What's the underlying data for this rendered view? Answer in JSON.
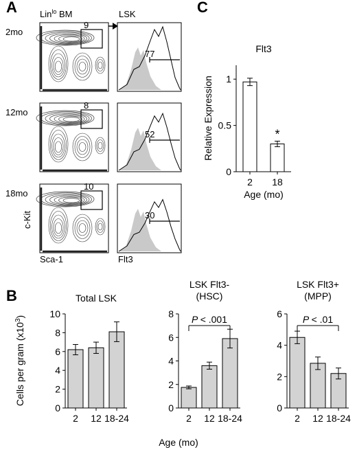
{
  "panels": {
    "a": "A",
    "b": "B",
    "c": "C"
  },
  "panel_a": {
    "rows": [
      {
        "age_label": "2mo",
        "gate_pct": "9",
        "flt3_pct": "77"
      },
      {
        "age_label": "12mo",
        "gate_pct": "8",
        "flt3_pct": "52"
      },
      {
        "age_label": "18mo",
        "gate_pct": "10",
        "flt3_pct": "30"
      }
    ],
    "left_header": "Lin",
    "left_header_sup": "lo",
    "left_header_rest": " BM",
    "right_header": "LSK",
    "y_axis_label": "c-Kit",
    "x_axis_left": "Sca-1",
    "x_axis_right": "Flt3"
  },
  "chart_data": [
    {
      "type": "bar",
      "id": "C",
      "title": "Flt3",
      "categories": [
        "2",
        "18"
      ],
      "values": [
        0.97,
        0.3
      ],
      "errors": [
        0.04,
        0.03
      ],
      "yticks": [
        "0",
        "0.5",
        "1"
      ],
      "ylim": [
        0,
        1.15
      ],
      "xlabel": "Age (mo)",
      "ylabel": "Relative Expression",
      "significance": [
        "",
        "*"
      ],
      "bar_color": "#ffffff"
    },
    {
      "type": "bar",
      "id": "B1",
      "title": "Total LSK",
      "title2": "",
      "categories": [
        "2",
        "12",
        "18-24"
      ],
      "values": [
        6.2,
        6.4,
        8.1
      ],
      "errors": [
        0.55,
        0.6,
        1.05
      ],
      "yticks": [
        "0",
        "2",
        "4",
        "6",
        "8",
        "10"
      ],
      "ylim": [
        0,
        10
      ],
      "bar_color": "#d3d3d3"
    },
    {
      "type": "bar",
      "id": "B2",
      "title": "LSK Flt3-",
      "title2": "(HSC)",
      "categories": [
        "2",
        "12",
        "18-24"
      ],
      "values": [
        1.75,
        3.6,
        5.9
      ],
      "errors": [
        0.12,
        0.3,
        0.8
      ],
      "yticks": [
        "0",
        "2",
        "4",
        "6",
        "8"
      ],
      "ylim": [
        0,
        8
      ],
      "bar_color": "#d3d3d3",
      "pvalue": "< .001"
    },
    {
      "type": "bar",
      "id": "B3",
      "title": "LSK Flt3+",
      "title2": "(MPP)",
      "categories": [
        "2",
        "12",
        "18-24"
      ],
      "values": [
        4.5,
        2.85,
        2.2
      ],
      "errors": [
        0.4,
        0.4,
        0.35
      ],
      "yticks": [
        "0",
        "2",
        "4",
        "6"
      ],
      "ylim": [
        0,
        6
      ],
      "bar_color": "#d3d3d3",
      "pvalue": "< .01"
    }
  ],
  "panel_b": {
    "ylabel": "Cells per gram (x10",
    "ylabel_sup": "3",
    "ylabel_end": ")",
    "xlabel": "Age (mo)",
    "p_letter": "P"
  }
}
